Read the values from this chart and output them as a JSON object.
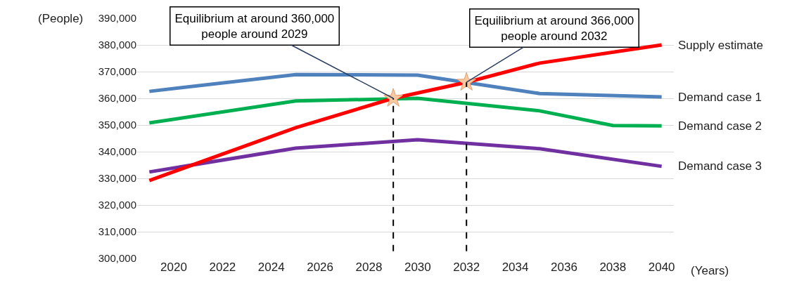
{
  "chart_data": {
    "type": "line",
    "ylabel": "(People)",
    "xlabel": "(Years)",
    "series": [
      {
        "name": "Demand case 1",
        "color": "#4f81bd",
        "x": [
          2019,
          2025,
          2030,
          2035,
          2040
        ],
        "values": [
          362600,
          368900,
          368700,
          361800,
          360500
        ]
      },
      {
        "name": "Demand case 2",
        "color": "#00b050",
        "x": [
          2019,
          2025,
          2030,
          2035,
          2038,
          2040
        ],
        "values": [
          350800,
          359000,
          360000,
          355300,
          349800,
          349700
        ]
      },
      {
        "name": "Demand case 3",
        "color": "#7030a0",
        "x": [
          2019,
          2025,
          2030,
          2035,
          2040
        ],
        "values": [
          332400,
          341300,
          344500,
          341100,
          334500
        ]
      },
      {
        "name": "Supply estimate",
        "color": "#ff0000",
        "x": [
          2019,
          2025,
          2029,
          2032,
          2035,
          2040
        ],
        "values": [
          329200,
          349000,
          360000,
          366000,
          373200,
          380000
        ]
      }
    ],
    "annotations": [
      {
        "text": "Equilibrium at around 360,000\npeople around 2029",
        "x": 2029,
        "y": 360000
      },
      {
        "text": "Equilibrium at around 366,000\npeople around 2032",
        "x": 2032,
        "y": 366000
      }
    ],
    "ref_lines": [
      {
        "axis": "x",
        "value": 2029,
        "line_style": "dashed",
        "color": "#000000"
      },
      {
        "axis": "x",
        "value": 2032,
        "line_style": "dashed",
        "color": "#000000"
      }
    ],
    "xlim": [
      2018.5,
      2040.5
    ],
    "xticks": [
      2020,
      2022,
      2024,
      2026,
      2028,
      2030,
      2032,
      2034,
      2036,
      2038,
      2040
    ],
    "ylim": [
      300000,
      390000
    ],
    "yticks": [
      {
        "value": 300000,
        "label": "300,000"
      },
      {
        "value": 310000,
        "label": "310,000"
      },
      {
        "value": 320000,
        "label": "320,000"
      },
      {
        "value": 330000,
        "label": "330,000"
      },
      {
        "value": 340000,
        "label": "340,000"
      },
      {
        "value": 350000,
        "label": "350,000"
      },
      {
        "value": 360000,
        "label": "360,000"
      },
      {
        "value": 370000,
        "label": "370,000"
      },
      {
        "value": 380000,
        "label": "380,000"
      },
      {
        "value": 390000,
        "label": "390,000"
      }
    ],
    "grid": "y",
    "legend": false,
    "marker": "none",
    "line_style": "solid"
  }
}
